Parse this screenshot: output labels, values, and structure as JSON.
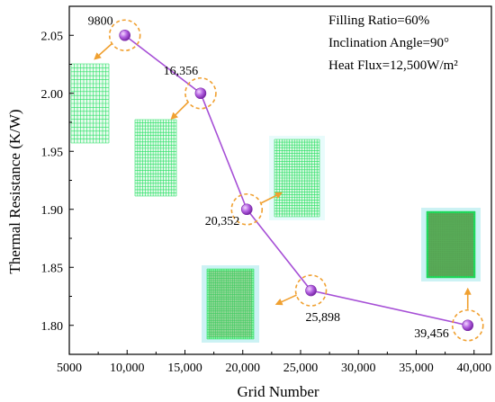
{
  "chart_data": {
    "type": "line",
    "xlabel": "Grid Number",
    "ylabel": "Thermal Resistance (K/W)",
    "xlim": [
      5000,
      41500
    ],
    "ylim": [
      1.775,
      2.075
    ],
    "x_ticks": [
      5000,
      10000,
      15000,
      20000,
      25000,
      30000,
      35000,
      40000
    ],
    "x_tick_labels": [
      "5000",
      "10,000",
      "15,000",
      "20,000",
      "25,000",
      "30,000",
      "35,000",
      "40,000"
    ],
    "y_ticks": [
      1.8,
      1.85,
      1.9,
      1.95,
      2.0,
      2.05
    ],
    "y_tick_labels": [
      "1.80",
      "1.85",
      "1.90",
      "1.95",
      "2.00",
      "2.05"
    ],
    "series": [
      {
        "x": [
          9800,
          16356,
          20352,
          25898,
          39456
        ],
        "y": [
          2.05,
          2.0,
          1.9,
          1.83,
          1.8
        ],
        "color": "#a64fd6"
      }
    ],
    "point_labels": [
      "9800",
      "16,356",
      "20,352",
      "25,898",
      "39,456"
    ],
    "annotations": [
      "Filling Ratio=60%",
      "Inclination Angle=90°",
      "Heat Flux=12,500W/m²"
    ],
    "highlight_color": "#f0a030",
    "mesh_colors": [
      "#23e060",
      "#e6304a"
    ],
    "grid": false
  }
}
